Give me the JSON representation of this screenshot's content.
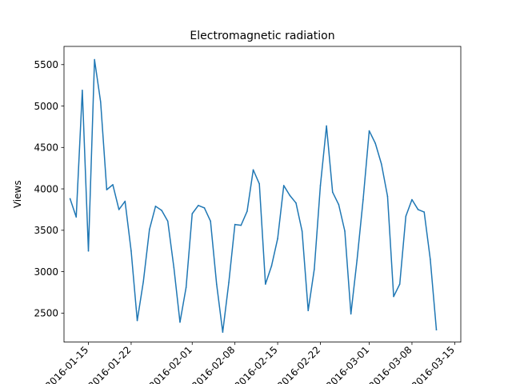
{
  "chart_data": {
    "type": "line",
    "title": "Electromagnetic radiation",
    "xlabel": "",
    "ylabel": "Views",
    "x_ticks": [
      "2016-01-15",
      "2016-01-22",
      "2016-02-01",
      "2016-02-08",
      "2016-02-15",
      "2016-02-22",
      "2016-03-01",
      "2016-03-08",
      "2016-03-15"
    ],
    "y_ticks": [
      2500,
      3000,
      3500,
      4000,
      4500,
      5000,
      5500
    ],
    "xlim": [
      "2016-01-11",
      "2016-03-16"
    ],
    "ylim": [
      2150,
      5720
    ],
    "grid": false,
    "line_color": "#1f77b4",
    "series": [
      {
        "x": [
          "2016-01-12",
          "2016-01-13",
          "2016-01-14",
          "2016-01-15",
          "2016-01-16",
          "2016-01-17",
          "2016-01-18",
          "2016-01-19",
          "2016-01-20",
          "2016-01-21",
          "2016-01-22",
          "2016-01-23",
          "2016-01-24",
          "2016-01-25",
          "2016-01-26",
          "2016-01-27",
          "2016-01-28",
          "2016-01-29",
          "2016-01-30",
          "2016-01-31",
          "2016-02-01",
          "2016-02-02",
          "2016-02-03",
          "2016-02-04",
          "2016-02-05",
          "2016-02-06",
          "2016-02-07",
          "2016-02-08",
          "2016-02-09",
          "2016-02-10",
          "2016-02-11",
          "2016-02-12",
          "2016-02-13",
          "2016-02-14",
          "2016-02-15",
          "2016-02-16",
          "2016-02-17",
          "2016-02-18",
          "2016-02-19",
          "2016-02-20",
          "2016-02-21",
          "2016-02-22",
          "2016-02-23",
          "2016-02-24",
          "2016-02-25",
          "2016-02-26",
          "2016-02-27",
          "2016-02-28",
          "2016-02-29",
          "2016-03-01",
          "2016-03-02",
          "2016-03-03",
          "2016-03-04",
          "2016-03-05",
          "2016-03-06",
          "2016-03-07",
          "2016-03-08",
          "2016-03-09",
          "2016-03-10",
          "2016-03-11",
          "2016-03-12"
        ],
        "values": [
          3880,
          3660,
          5190,
          3250,
          5560,
          5050,
          3990,
          4050,
          3750,
          3850,
          3250,
          2410,
          2880,
          3510,
          3790,
          3740,
          3610,
          3050,
          2390,
          2810,
          3700,
          3800,
          3770,
          3610,
          2850,
          2270,
          2870,
          3570,
          3560,
          3730,
          4230,
          4060,
          2850,
          3070,
          3400,
          4040,
          3920,
          3830,
          3490,
          2530,
          3030,
          4040,
          4760,
          3960,
          3810,
          3490,
          2490,
          3140,
          3870,
          4700,
          4550,
          4300,
          3910,
          2700,
          2850,
          3670,
          3870,
          3750,
          3720,
          3150,
          2300
        ]
      }
    ]
  }
}
